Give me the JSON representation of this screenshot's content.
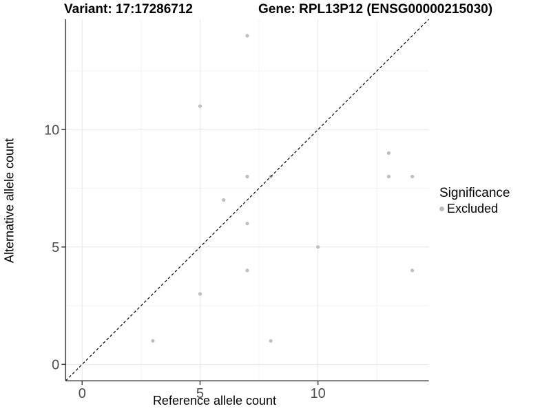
{
  "titles": {
    "variant": "Variant: 17:17286712",
    "gene": "Gene: RPL13P12 (ENSG00000215030)"
  },
  "chart_data": {
    "type": "scatter",
    "title_left": "Variant: 17:17286712",
    "title_right": "Gene: RPL13P12 (ENSG00000215030)",
    "xlabel": "Reference allele count",
    "ylabel": "Alternative allele count",
    "xlim": [
      0,
      14
    ],
    "ylim": [
      0,
      14
    ],
    "expansion": 0.05,
    "x_ticks": [
      0,
      5,
      10
    ],
    "y_ticks": [
      0,
      5,
      10
    ],
    "x_minor_ticks": [
      2.5,
      7.5,
      12.5
    ],
    "y_minor_ticks": [
      2.5,
      7.5,
      12.5
    ],
    "grid": true,
    "points": [
      [
        3,
        1
      ],
      [
        5,
        3
      ],
      [
        5,
        11
      ],
      [
        6,
        7
      ],
      [
        7,
        4
      ],
      [
        7,
        6
      ],
      [
        7,
        8
      ],
      [
        7,
        14
      ],
      [
        8,
        1
      ],
      [
        8,
        8
      ],
      [
        10,
        5
      ],
      [
        13,
        8
      ],
      [
        13,
        9
      ],
      [
        14,
        4
      ],
      [
        14,
        8
      ]
    ],
    "identity_line": {
      "type": "dashed",
      "slope": 1,
      "intercept": 0
    },
    "legend_position": "right",
    "colors": {
      "point": "#bebebe",
      "grid_major": "#e6e6e6",
      "grid_minor": "#f2f2f2",
      "axis_line": "#404040",
      "tick_label": "#4d4d4d",
      "identity_line": "#000000"
    }
  },
  "legend": {
    "title": "Significance",
    "items": [
      {
        "label": "Excluded",
        "color": "#bebebe"
      }
    ]
  }
}
